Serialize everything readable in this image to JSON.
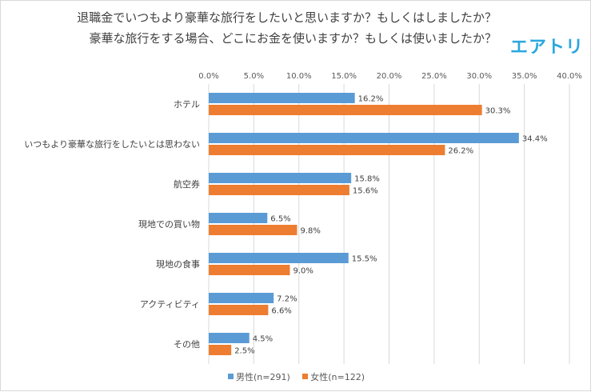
{
  "header": {
    "title_line1": "退職金でいつもより豪華な旅行をしたいと思いますか？もしくはしましたか？",
    "title_line2": "豪華な旅行をする場合、どこにお金を使いますか？もしくは使いましたか？",
    "logo_text": "エアトリ"
  },
  "colors": {
    "male": "#5b9bd5",
    "female": "#ed7d31",
    "grid": "#d9d9d9",
    "logo": "#2aa7e0"
  },
  "chart_data": {
    "type": "bar",
    "orientation": "horizontal",
    "categories": [
      "ホテル",
      "いつもより豪華な旅行をしたいとは思わない",
      "航空券",
      "現地での買い物",
      "現地の食事",
      "アクティビティ",
      "その他"
    ],
    "series": [
      {
        "name": "男性(n=291)",
        "values": [
          16.2,
          34.4,
          15.8,
          6.5,
          15.5,
          7.2,
          4.5
        ],
        "labels": [
          "16.2%",
          "34.4%",
          "15.8%",
          "6.5%",
          "15.5%",
          "7.2%",
          "4.5%"
        ]
      },
      {
        "name": "女性(n=122)",
        "values": [
          30.3,
          26.2,
          15.6,
          9.8,
          9.0,
          6.6,
          2.5
        ],
        "labels": [
          "30.3%",
          "26.2%",
          "15.6%",
          "9.8%",
          "9.0%",
          "6.6%",
          "2.5%"
        ]
      }
    ],
    "xlim": [
      0,
      40
    ],
    "ticks": [
      "0.0%",
      "5.0%",
      "10.0%",
      "15.0%",
      "20.0%",
      "25.0%",
      "30.0%",
      "35.0%",
      "40.0%"
    ],
    "tick_values": [
      0,
      5,
      10,
      15,
      20,
      25,
      30,
      35,
      40
    ],
    "grid": true,
    "legend_position": "bottom"
  }
}
